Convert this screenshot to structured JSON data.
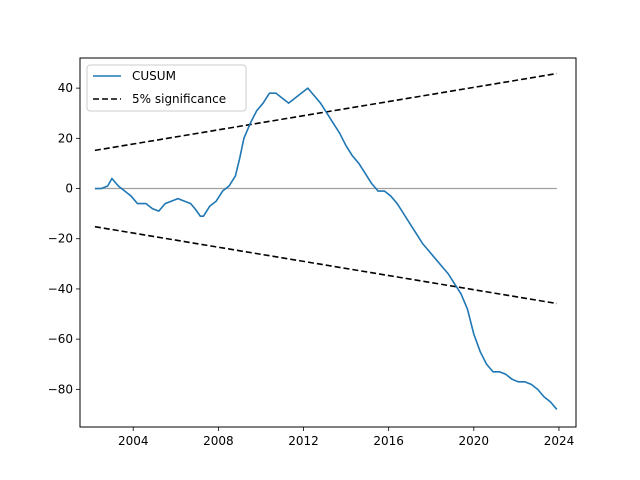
{
  "chart_data": {
    "type": "line",
    "title": "",
    "xlabel": "",
    "ylabel": "",
    "xlim": [
      2001.5,
      2024.8
    ],
    "ylim": [
      -95,
      52
    ],
    "xticks": [
      2004,
      2008,
      2012,
      2016,
      2020,
      2024
    ],
    "yticks": [
      -80,
      -60,
      -40,
      -20,
      0,
      20,
      40
    ],
    "grid": false,
    "legend_position": "top-left",
    "series": [
      {
        "name": "CUSUM",
        "color": "#1f77b4",
        "style": "solid",
        "x": [
          2002.2,
          2002.5,
          2002.8,
          2003.0,
          2003.3,
          2003.6,
          2003.9,
          2004.2,
          2004.6,
          2004.9,
          2005.2,
          2005.5,
          2005.8,
          2006.1,
          2006.4,
          2006.7,
          2006.9,
          2007.15,
          2007.3,
          2007.6,
          2007.9,
          2008.2,
          2008.5,
          2008.8,
          2009.0,
          2009.2,
          2009.5,
          2009.8,
          2010.1,
          2010.4,
          2010.7,
          2011.0,
          2011.3,
          2011.6,
          2011.9,
          2012.2,
          2012.5,
          2012.8,
          2013.1,
          2013.4,
          2013.7,
          2014.0,
          2014.3,
          2014.6,
          2014.9,
          2015.2,
          2015.5,
          2015.8,
          2016.1,
          2016.4,
          2016.7,
          2017.0,
          2017.3,
          2017.6,
          2017.9,
          2018.2,
          2018.5,
          2018.8,
          2019.1,
          2019.4,
          2019.7,
          2020.0,
          2020.3,
          2020.6,
          2020.9,
          2021.2,
          2021.5,
          2021.8,
          2022.1,
          2022.4,
          2022.7,
          2023.0,
          2023.3,
          2023.6,
          2023.9
        ],
        "y": [
          0,
          0,
          1,
          4,
          1,
          -1,
          -3,
          -6,
          -6,
          -8,
          -9,
          -6,
          -5,
          -4,
          -5,
          -6,
          -8,
          -11,
          -11,
          -7,
          -5,
          -1,
          1,
          5,
          12,
          20,
          26,
          31,
          34,
          38,
          38,
          36,
          34,
          36,
          38,
          40,
          37,
          34,
          30,
          26,
          22,
          17,
          13,
          10,
          6,
          2,
          -1,
          -1,
          -3,
          -6,
          -10,
          -14,
          -18,
          -22,
          -25,
          -28,
          -31,
          -34,
          -38,
          -42,
          -48,
          -58,
          -65,
          -70,
          -73,
          -73,
          -74,
          -76,
          -77,
          -77,
          -78,
          -80,
          -83,
          -85,
          -88
        ]
      },
      {
        "name": "5% significance",
        "color": "#000000",
        "style": "dashed",
        "x": [
          2002.2,
          2023.9
        ],
        "y": [
          15.2,
          45.8
        ]
      },
      {
        "name": "",
        "color": "#000000",
        "style": "dashed",
        "x": [
          2002.2,
          2023.9
        ],
        "y": [
          -15.2,
          -45.8
        ]
      },
      {
        "name": "",
        "color": "#a0a0a0",
        "style": "solid",
        "x": [
          2002.2,
          2023.9
        ],
        "y": [
          0,
          0
        ]
      }
    ]
  }
}
